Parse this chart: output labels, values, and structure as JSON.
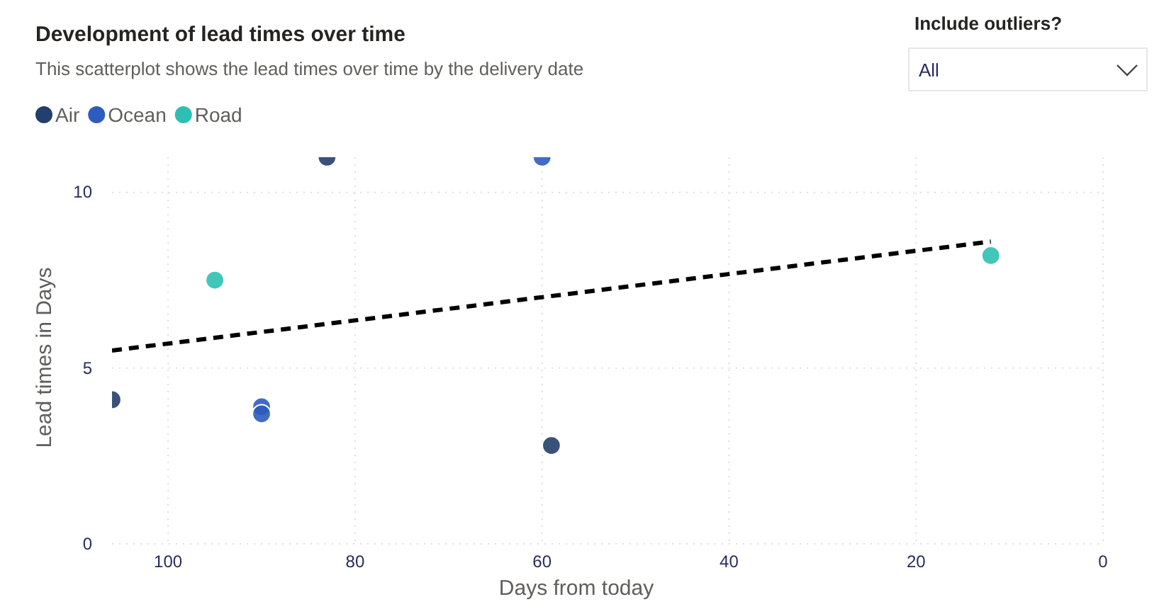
{
  "chart_data": {
    "type": "scatter",
    "title": "Development of lead times over time",
    "subtitle": "This scatterplot shows the lead times over time by the delivery date",
    "xlabel": "Days from today",
    "ylabel": "Lead times in Days",
    "annotations": [
      "Include outliers?",
      "All"
    ],
    "xlim": [
      106,
      0
    ],
    "xticks": [
      100,
      80,
      60,
      40,
      20,
      0
    ],
    "ylim": [
      0,
      11
    ],
    "yticks": [
      0,
      5,
      10
    ],
    "grid": true,
    "legend": "top left",
    "marker": "circle",
    "series": [
      {
        "name": "Air",
        "color": "#233f6b",
        "x": [
          106,
          83,
          59
        ],
        "values": [
          4.1,
          11,
          2.8
        ]
      },
      {
        "name": "Ocean",
        "color": "#2e5cbe",
        "x": [
          90,
          90,
          60
        ],
        "values": [
          3.9,
          3.7,
          11
        ]
      },
      {
        "name": "Road",
        "color": "#2cc0b2",
        "x": [
          95,
          12
        ],
        "values": [
          7.5,
          8.2
        ]
      },
      {
        "type": "line",
        "color": "#000000",
        "line_style": "dashed",
        "marker": "none",
        "x": [
          106,
          12
        ],
        "values": [
          5.5,
          8.6
        ]
      }
    ]
  }
}
